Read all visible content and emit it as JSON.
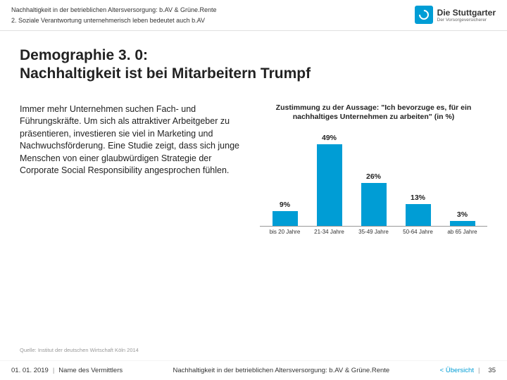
{
  "header": {
    "breadcrumb1": "Nachhaltigkeit in der betrieblichen Altersversorgung: b.AV & Grüne.Rente",
    "breadcrumb2": "2. Soziale Verantwortung unternehmerisch leben bedeutet auch b.AV",
    "logo_main": "Die Stuttgarter",
    "logo_sub": "Der Vorsorgeversicherer"
  },
  "title_line1": "Demographie 3. 0:",
  "title_line2": "Nachhaltigkeit ist bei Mitarbeitern Trumpf",
  "body_text": "Immer mehr Unternehmen suchen Fach- und Führungskräfte. Um sich als attraktiver Arbeitgeber zu präsentieren, investieren sie viel in Marketing und Nachwuchsförderung. Eine Studie zeigt, dass sich junge Menschen von einer glaubwürdigen Strategie der Corporate Social Responsibility angesprochen fühlen.",
  "chart": {
    "type": "bar",
    "title": "Zustimmung zu der Aussage: \"Ich bevorzuge es, für ein nachhaltiges Unternehmen zu arbeiten\" (in %)",
    "categories": [
      "bis 20 Jahre",
      "21-34 Jahre",
      "35-49 Jahre",
      "50-64 Jahre",
      "ab 65 Jahre"
    ],
    "values": [
      9,
      49,
      26,
      13,
      3
    ],
    "labels": [
      "9%",
      "49%",
      "26%",
      "13%",
      "3%"
    ],
    "max": 55,
    "bar_color": "#009dd5",
    "axis_color": "#999999",
    "bg_color": "#ffffff"
  },
  "source": "Quelle: Institut der deutschen Wirtschaft Köln 2014",
  "footer": {
    "date": "01. 01. 2019",
    "name": "Name des Vermittlers",
    "center": "Nachhaltigkeit in der betrieblichen Altersversorgung: b.AV & Grüne.Rente",
    "back": "< Übersicht",
    "page": "35"
  }
}
